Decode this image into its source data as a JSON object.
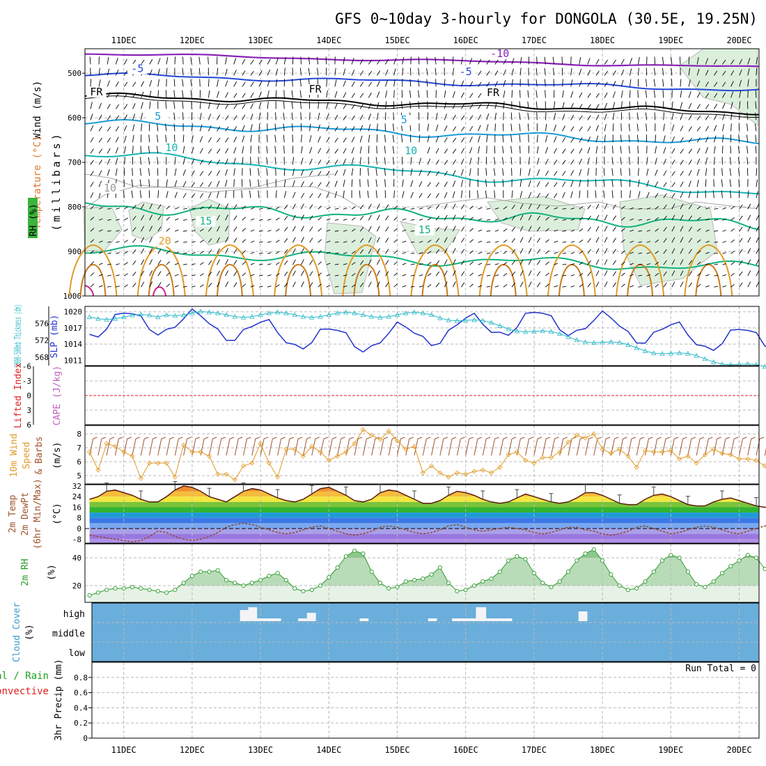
{
  "title": "GFS 0~10day 3-hourly for DONGOLA (30.5E, 19.25N)",
  "colors": {
    "rh_fill": "#dcefdc",
    "purple": "#8a22b8",
    "blue": "#2448d6",
    "black": "#000000",
    "skyblue": "#1a9ad6",
    "teal": "#18b4b4",
    "green": "#12b27c",
    "orange": "#e09a24",
    "magenta": "#d21a8a",
    "slp": "#2233cc",
    "thickness": "#2ab8c8",
    "lifted": "#e02020",
    "wind10": "#e09a24",
    "barbs10": "#a0522d",
    "temp_line": "#5a1e0e",
    "dewpt": "#8b4a2a",
    "rh2m": "#2a9a2a",
    "cloud": "#6aaedb",
    "precip_green": "#20a020",
    "precip_red": "#e02020"
  },
  "chart_data": [
    {
      "type": "contour",
      "name": "upper_air",
      "x_dates": [
        "11DEC",
        "12DEC",
        "13DEC",
        "14DEC",
        "15DEC",
        "16DEC",
        "17DEC",
        "18DEC",
        "19DEC",
        "20DEC"
      ],
      "y_label": "(millibars)",
      "y_ticks": [
        "500",
        "600",
        "700",
        "800",
        "900",
        "1000"
      ],
      "legend": {
        "wind": "Wind (m/s)",
        "temperature": "Temperature (°C)",
        "rh": "RH (%)"
      },
      "contour_labels": [
        {
          "text": "-5",
          "x": 1.2,
          "p": 496
        },
        {
          "text": "-5",
          "x": 6.0,
          "p": 503
        },
        {
          "text": "-10",
          "x": 6.5,
          "p": 462
        },
        {
          "text": "FR",
          "x": 0.6,
          "p": 548
        },
        {
          "text": "FR",
          "x": 3.8,
          "p": 542
        },
        {
          "text": "FR",
          "x": 6.4,
          "p": 550
        },
        {
          "text": "5",
          "x": 1.5,
          "p": 603
        },
        {
          "text": "5",
          "x": 5.1,
          "p": 611
        },
        {
          "text": "10",
          "x": 1.7,
          "p": 673
        },
        {
          "text": "10",
          "x": 5.2,
          "p": 680
        },
        {
          "text": "15",
          "x": 2.2,
          "p": 838
        },
        {
          "text": "15",
          "x": 5.4,
          "p": 858
        },
        {
          "text": "20",
          "x": 1.6,
          "p": 883
        },
        {
          "text": "10",
          "x": 0.8,
          "p": 764
        }
      ]
    },
    {
      "type": "line",
      "name": "slp_thickness",
      "labels": {
        "thickness": "1000-500mb Thickness (dm)",
        "slp": "SLP (mb)"
      },
      "left_ticks": [
        "568",
        "572",
        "576"
      ],
      "right_ticks": [
        "1011",
        "1014",
        "1017",
        "1020"
      ],
      "thickness_range": [
        566,
        580
      ],
      "slp_range": [
        1010,
        1021
      ]
    },
    {
      "type": "line",
      "name": "stability",
      "labels": {
        "lifted": "Lifted Index",
        "cape": "CAPE (J/kg)"
      },
      "y_ticks": [
        "-6",
        "-3",
        "0",
        "3",
        "6"
      ],
      "lifted_index": 0
    },
    {
      "type": "line",
      "name": "wind10m",
      "labels": {
        "line1": "10m Wind",
        "line2": "Speed",
        "line3": "& Barbs",
        "unit": "(m/s)"
      },
      "y_ticks": [
        "5",
        "6",
        "7",
        "8"
      ],
      "ylim": [
        4.4,
        8.6
      ],
      "values": [
        6.7,
        5.4,
        7.3,
        7.1,
        6.7,
        6.4,
        4.8,
        5.9,
        5.9,
        5.9,
        4.9,
        7.2,
        6.7,
        6.7,
        6.4,
        5.1,
        5.1,
        4.7,
        5.7,
        5.9,
        7.3,
        5.9,
        4.9,
        6.9,
        6.9,
        6.4,
        7.1,
        6.7,
        6.1,
        6.4,
        6.7,
        7.3,
        8.3,
        7.9,
        7.6,
        8.2,
        7.5,
        6.9,
        7.1,
        5.2,
        5.7,
        5.2,
        4.9,
        5.2,
        5.1,
        5.3,
        5.4,
        5.2,
        5.6,
        6.5,
        6.7,
        6.1,
        5.9,
        6.3,
        6.3,
        6.7,
        7.4,
        7.9,
        7.7,
        8.0,
        6.9,
        6.6,
        6.9,
        6.4,
        5.6,
        6.8,
        6.7,
        6.7,
        6.8,
        6.2,
        6.4,
        5.9,
        6.5,
        6.9,
        6.6,
        6.5,
        6.2,
        6.2,
        6.1,
        5.7,
        5.1,
        6.6,
        6.9,
        6.9,
        6.6,
        5.9,
        5.2,
        4.8,
        5.9
      ]
    },
    {
      "type": "line",
      "name": "temp2m",
      "labels": {
        "temp": "2m Temp",
        "dewpt": "2m DewPt",
        "minmax": "(6hr Min/Max)",
        "unit": "(°C)"
      },
      "y_ticks": [
        "32",
        "24",
        "16",
        "8",
        "0",
        "-8"
      ],
      "ylim": [
        -11,
        33
      ],
      "temperature": [
        22,
        24,
        28,
        29,
        27,
        25,
        22,
        20,
        20,
        24,
        29,
        32,
        31,
        28,
        24,
        22,
        20,
        24,
        28,
        30,
        29,
        26,
        23,
        21,
        20,
        22,
        26,
        30,
        31,
        28,
        25,
        21,
        20,
        22,
        27,
        29,
        28,
        25,
        22,
        19,
        19,
        21,
        25,
        28,
        27,
        25,
        22,
        20,
        19,
        20,
        23,
        26,
        24,
        22,
        20,
        19,
        20,
        23,
        27,
        27,
        25,
        22,
        19,
        18,
        18,
        22,
        25,
        26,
        24,
        21,
        18,
        17,
        17,
        20,
        22,
        23,
        21,
        19,
        17,
        16,
        16,
        18,
        20,
        20,
        19,
        17,
        15,
        14,
        15
      ],
      "dewpoint": [
        -5,
        -6,
        -7,
        -8,
        -9,
        -10,
        -9,
        -6,
        -2,
        -3,
        -6,
        -8,
        -9,
        -8,
        -6,
        -3,
        1,
        3,
        4,
        3,
        1,
        -1,
        -3,
        -4,
        -3,
        -1,
        1,
        2,
        0,
        -2,
        -4,
        -5,
        -4,
        -2,
        1,
        2,
        1,
        -1,
        -3,
        -4,
        -3,
        -1,
        2,
        3,
        1,
        -1,
        -2,
        -1,
        0,
        1,
        0,
        -1,
        -3,
        -4,
        -3,
        -1,
        1,
        1,
        -1,
        -2,
        -4,
        -5,
        -4,
        -2,
        1,
        2,
        0,
        -2,
        -4,
        -3,
        -1,
        1,
        2,
        1,
        -1,
        -3,
        -4,
        -2,
        0,
        2,
        1,
        -1,
        -4,
        -6,
        -5,
        -3,
        -1,
        0,
        1
      ]
    },
    {
      "type": "area",
      "name": "rh2m",
      "labels": {
        "rh": "2m RH",
        "unit": "(%)"
      },
      "y_ticks": [
        "40",
        "20"
      ],
      "ylim": [
        8,
        50
      ],
      "values": [
        13,
        15,
        17,
        18,
        18,
        19,
        18,
        17,
        16,
        15,
        17,
        22,
        27,
        30,
        30,
        31,
        24,
        22,
        20,
        22,
        24,
        27,
        29,
        24,
        18,
        16,
        17,
        20,
        26,
        33,
        41,
        45,
        43,
        30,
        22,
        18,
        19,
        23,
        24,
        25,
        28,
        33,
        22,
        16,
        17,
        20,
        23,
        25,
        30,
        38,
        41,
        39,
        29,
        22,
        19,
        23,
        30,
        38,
        43,
        46,
        38,
        28,
        20,
        17,
        18,
        23,
        30,
        38,
        42,
        40,
        30,
        21,
        19,
        23,
        29,
        34,
        38,
        42,
        40,
        32,
        24,
        20,
        18,
        19,
        22,
        29,
        38,
        46,
        40
      ]
    },
    {
      "type": "bar",
      "name": "cloud_cover",
      "labels": {
        "title": "Cloud Cover",
        "unit": "(%)",
        "high": "high",
        "middle": "middle",
        "low": "low"
      },
      "high_blocks": [
        {
          "day": 2.7,
          "w": 0.13,
          "level": 0.8
        },
        {
          "day": 2.82,
          "w": 0.13,
          "level": 1.0
        },
        {
          "day": 2.95,
          "w": 0.35,
          "level": 0.2
        },
        {
          "day": 3.55,
          "w": 0.13,
          "level": 0.2
        },
        {
          "day": 3.68,
          "w": 0.13,
          "level": 0.6
        },
        {
          "day": 4.45,
          "w": 0.13,
          "level": 0.2
        },
        {
          "day": 5.45,
          "w": 0.13,
          "level": 0.2
        },
        {
          "day": 5.8,
          "w": 0.35,
          "level": 0.2
        },
        {
          "day": 6.15,
          "w": 0.15,
          "level": 1.0
        },
        {
          "day": 6.3,
          "w": 0.38,
          "level": 0.2
        },
        {
          "day": 7.65,
          "w": 0.13,
          "level": 0.7
        }
      ]
    },
    {
      "type": "bar",
      "name": "precip",
      "labels": {
        "line1": "Total / Rain",
        "line2": "Convective",
        "title": "3hr Precip (mm)",
        "run_total": "Run Total = 0"
      },
      "y_ticks": [
        "0",
        "0.2",
        "0.4",
        "0.6",
        "0.8"
      ],
      "ylim": [
        0,
        1
      ],
      "values": []
    }
  ]
}
